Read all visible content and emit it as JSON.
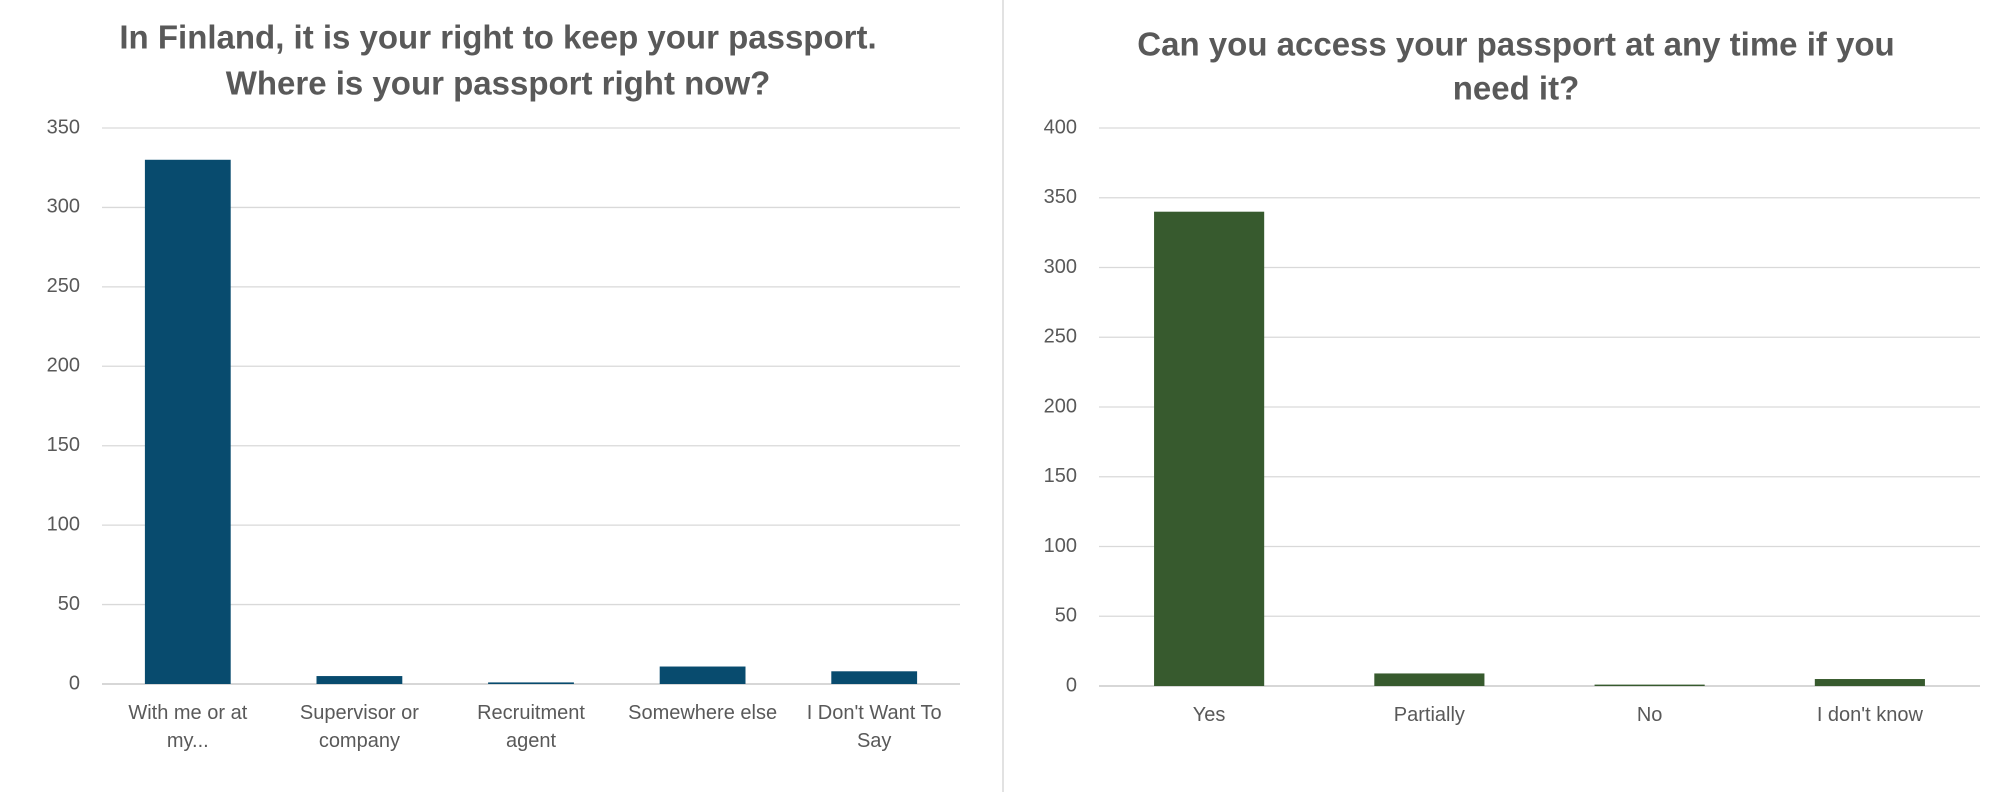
{
  "chart_data": [
    {
      "type": "bar",
      "title": [
        "In Finland, it is your right to keep your passport.",
        "Where is your passport right now?"
      ],
      "categories": [
        "With me or at my...",
        "Supervisor or company",
        "Recruitment agent",
        "Somewhere else",
        "I Don't Want To Say"
      ],
      "values": [
        330,
        5,
        1,
        11,
        8
      ],
      "color": "#084b6e",
      "ylim": [
        0,
        350
      ],
      "yticks": [
        0,
        50,
        100,
        150,
        200,
        250,
        300,
        350
      ],
      "grid": true
    },
    {
      "type": "bar",
      "title": [
        "Can you access your passport at any time if you",
        "need it?"
      ],
      "categories": [
        "Yes",
        "Partially",
        "No",
        "I don't know"
      ],
      "values": [
        340,
        9,
        1,
        5
      ],
      "color": "#375a2e",
      "ylim": [
        0,
        400
      ],
      "yticks": [
        0,
        50,
        100,
        150,
        200,
        250,
        300,
        350,
        400
      ],
      "grid": true
    }
  ]
}
